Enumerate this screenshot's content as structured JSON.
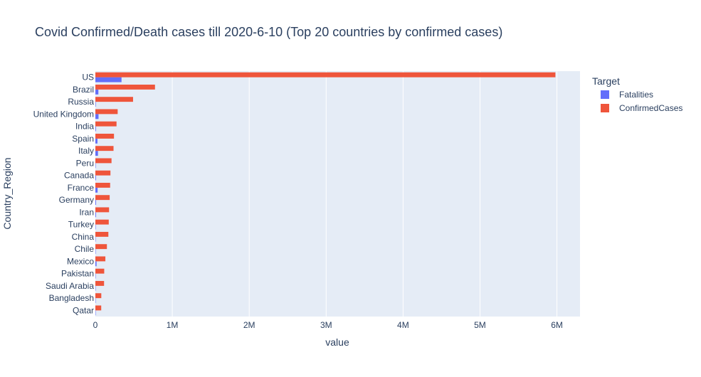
{
  "chart_data": {
    "type": "bar",
    "orientation": "horizontal",
    "barmode": "group",
    "title": "Covid Confirmed/Death cases till 2020-6-10 (Top 20 countries by confirmed cases)",
    "xlabel": "value",
    "ylabel": "Country_Region",
    "xlim": [
      0,
      6300000
    ],
    "xticks": [
      0,
      1000000,
      2000000,
      3000000,
      4000000,
      5000000,
      6000000
    ],
    "xtick_labels": [
      "0",
      "1M",
      "2M",
      "3M",
      "4M",
      "5M",
      "6M"
    ],
    "grid": true,
    "legend_title": "Target",
    "legend_position": "top-right",
    "categories": [
      "US",
      "Brazil",
      "Russia",
      "United Kingdom",
      "India",
      "Spain",
      "Italy",
      "Peru",
      "Canada",
      "France",
      "Germany",
      "Iran",
      "Turkey",
      "China",
      "Chile",
      "Mexico",
      "Pakistan",
      "Saudi Arabia",
      "Bangladesh",
      "Qatar"
    ],
    "series": [
      {
        "name": "Fatalities",
        "color": "#636efa",
        "values": [
          340000,
          39000,
          6000,
          41000,
          8000,
          27000,
          34000,
          5000,
          8000,
          29000,
          8800,
          8500,
          4700,
          4600,
          2600,
          15000,
          2300,
          900,
          1000,
          100
        ]
      },
      {
        "name": "ConfirmedCases",
        "color": "#ef553b",
        "values": [
          5980000,
          775000,
          490000,
          290000,
          275000,
          242000,
          236000,
          210000,
          196000,
          192000,
          186000,
          178000,
          174000,
          169000,
          150000,
          130000,
          115000,
          113000,
          77000,
          76000
        ]
      }
    ]
  }
}
